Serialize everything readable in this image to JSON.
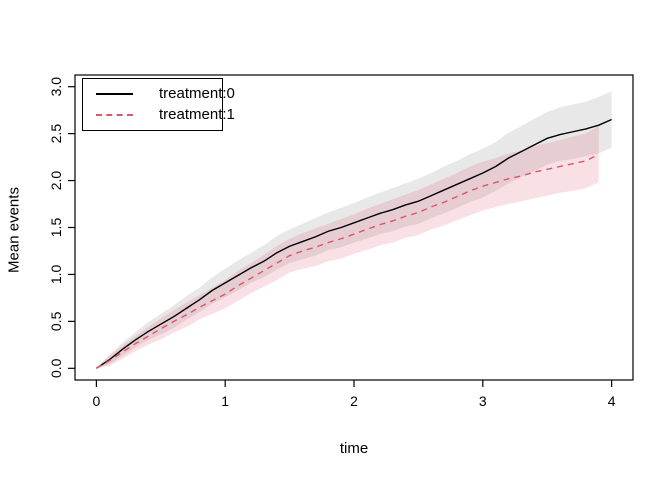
{
  "figure": {
    "background": "#ffffff"
  },
  "chart_data": {
    "type": "line",
    "title": "",
    "xlabel": "time",
    "ylabel": "Mean events",
    "xlim": [
      0,
      4
    ],
    "ylim": [
      0,
      3
    ],
    "x_ticks": [
      "0",
      "1",
      "2",
      "3",
      "4"
    ],
    "y_ticks": [
      "0.0",
      "0.5",
      "1.0",
      "1.5",
      "2.0",
      "2.5",
      "3.0"
    ],
    "grid": false,
    "legend_position": "top-left",
    "box": true,
    "axis_color": "#000000",
    "series": [
      {
        "name": "treatment:0",
        "line_style": "solid",
        "color": "#000000",
        "band_color": "rgba(128,128,128,0.18)",
        "x": [
          0,
          0.1,
          0.2,
          0.3,
          0.4,
          0.5,
          0.6,
          0.7,
          0.8,
          0.9,
          1,
          1.1,
          1.2,
          1.3,
          1.4,
          1.5,
          1.6,
          1.7,
          1.8,
          1.9,
          2,
          2.1,
          2.2,
          2.3,
          2.4,
          2.5,
          2.6,
          2.7,
          2.8,
          2.9,
          3,
          3.1,
          3.2,
          3.3,
          3.4,
          3.5,
          3.6,
          3.7,
          3.8,
          3.9,
          4
        ],
        "mean": [
          0,
          0.09,
          0.2,
          0.3,
          0.39,
          0.47,
          0.55,
          0.64,
          0.73,
          0.83,
          0.91,
          0.99,
          1.07,
          1.14,
          1.23,
          1.3,
          1.35,
          1.4,
          1.46,
          1.5,
          1.55,
          1.6,
          1.65,
          1.69,
          1.74,
          1.78,
          1.84,
          1.9,
          1.96,
          2.02,
          2.08,
          2.15,
          2.24,
          2.31,
          2.38,
          2.45,
          2.49,
          2.52,
          2.55,
          2.59,
          2.65
        ],
        "upper": [
          0,
          0.14,
          0.27,
          0.38,
          0.49,
          0.58,
          0.67,
          0.77,
          0.86,
          0.97,
          1.06,
          1.15,
          1.23,
          1.31,
          1.41,
          1.48,
          1.54,
          1.6,
          1.66,
          1.71,
          1.76,
          1.82,
          1.87,
          1.92,
          1.97,
          2.02,
          2.08,
          2.15,
          2.21,
          2.28,
          2.34,
          2.41,
          2.51,
          2.58,
          2.66,
          2.73,
          2.78,
          2.81,
          2.84,
          2.89,
          2.95
        ],
        "lower": [
          0,
          0.04,
          0.13,
          0.22,
          0.3,
          0.36,
          0.43,
          0.52,
          0.6,
          0.69,
          0.76,
          0.83,
          0.91,
          0.97,
          1.05,
          1.12,
          1.16,
          1.2,
          1.26,
          1.29,
          1.34,
          1.38,
          1.43,
          1.46,
          1.51,
          1.54,
          1.6,
          1.65,
          1.71,
          1.77,
          1.82,
          1.89,
          1.97,
          2.04,
          2.1,
          2.17,
          2.21,
          2.23,
          2.26,
          2.29,
          2.35
        ]
      },
      {
        "name": "treatment:1",
        "line_style": "dashed",
        "color": "#DF536B",
        "band_color": "rgba(223,83,107,0.18)",
        "x": [
          0,
          0.1,
          0.2,
          0.3,
          0.4,
          0.5,
          0.6,
          0.7,
          0.8,
          0.9,
          1,
          1.1,
          1.2,
          1.3,
          1.4,
          1.5,
          1.6,
          1.7,
          1.8,
          1.9,
          2,
          2.1,
          2.2,
          2.3,
          2.4,
          2.5,
          2.6,
          2.7,
          2.8,
          2.9,
          3,
          3.1,
          3.2,
          3.3,
          3.4,
          3.5,
          3.6,
          3.7,
          3.8,
          3.9
        ],
        "mean": [
          0,
          0.08,
          0.17,
          0.26,
          0.34,
          0.42,
          0.5,
          0.57,
          0.65,
          0.72,
          0.79,
          0.88,
          0.96,
          1.04,
          1.12,
          1.2,
          1.25,
          1.29,
          1.34,
          1.38,
          1.43,
          1.48,
          1.53,
          1.57,
          1.62,
          1.66,
          1.72,
          1.77,
          1.83,
          1.89,
          1.94,
          1.98,
          2.02,
          2.05,
          2.09,
          2.12,
          2.15,
          2.18,
          2.21,
          2.28
        ],
        "upper": [
          0,
          0.13,
          0.24,
          0.34,
          0.44,
          0.53,
          0.62,
          0.7,
          0.78,
          0.86,
          0.94,
          1.04,
          1.12,
          1.21,
          1.3,
          1.38,
          1.44,
          1.49,
          1.54,
          1.59,
          1.64,
          1.7,
          1.75,
          1.8,
          1.85,
          1.9,
          1.96,
          2.02,
          2.08,
          2.15,
          2.2,
          2.24,
          2.29,
          2.32,
          2.37,
          2.4,
          2.43,
          2.47,
          2.5,
          2.58
        ],
        "lower": [
          0,
          0.03,
          0.1,
          0.18,
          0.25,
          0.31,
          0.38,
          0.44,
          0.52,
          0.58,
          0.64,
          0.72,
          0.8,
          0.87,
          0.94,
          1.02,
          1.06,
          1.09,
          1.14,
          1.17,
          1.22,
          1.26,
          1.31,
          1.34,
          1.39,
          1.42,
          1.48,
          1.52,
          1.58,
          1.63,
          1.68,
          1.72,
          1.75,
          1.78,
          1.81,
          1.84,
          1.87,
          1.89,
          1.92,
          1.98
        ]
      }
    ]
  }
}
